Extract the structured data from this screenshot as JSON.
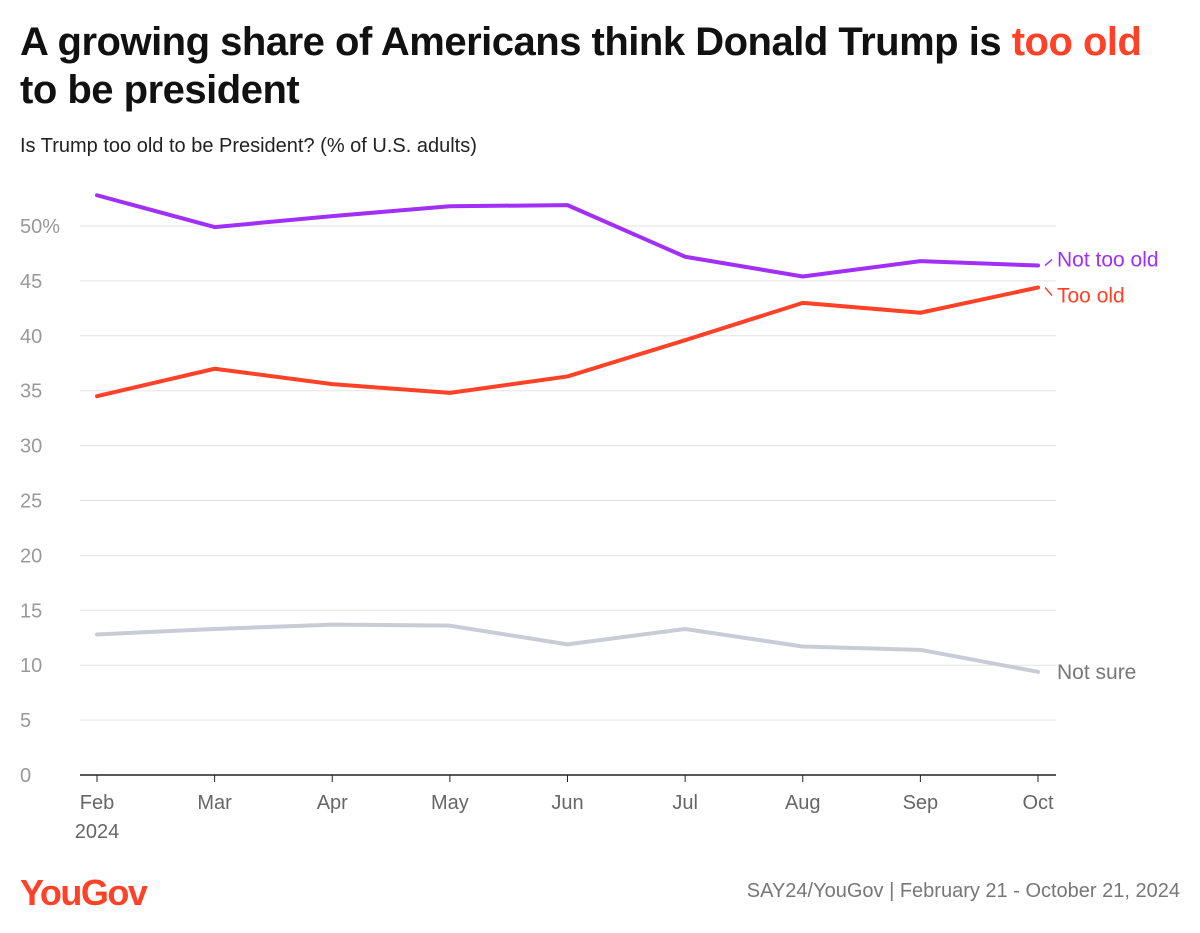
{
  "header": {
    "title_part1": "A growing share of Americans think Donald Trump is ",
    "title_highlight": "too old",
    "title_part2": " to be president",
    "subtitle": "Is Trump too old to be President? (% of U.S. adults)"
  },
  "footer": {
    "logo": "YouGov",
    "source": "SAY24/YouGov | February 21 - October 21, 2024"
  },
  "chart_data": {
    "type": "line",
    "categories": [
      "Feb",
      "Mar",
      "Apr",
      "May",
      "Jun",
      "Jul",
      "Aug",
      "Sep",
      "Oct"
    ],
    "category_sublabels": [
      "2024",
      "",
      "",
      "",
      "",
      "",
      "",
      "",
      ""
    ],
    "ylim": [
      0,
      53
    ],
    "yticks": [
      0,
      5,
      10,
      15,
      20,
      25,
      30,
      35,
      40,
      45,
      50
    ],
    "ytick_labels": [
      "0",
      "5",
      "10",
      "15",
      "20",
      "25",
      "30",
      "35",
      "40",
      "45",
      "50%"
    ],
    "grid": true,
    "series": [
      {
        "name": "Not too old",
        "color": "#a12ff7",
        "values": [
          52.8,
          49.9,
          50.9,
          51.8,
          51.9,
          47.2,
          45.4,
          46.8,
          46.4
        ]
      },
      {
        "name": "Too old",
        "color": "#ff4127",
        "values": [
          34.5,
          37.0,
          35.6,
          34.8,
          36.3,
          39.6,
          43.0,
          42.1,
          44.4
        ]
      },
      {
        "name": "Not sure",
        "color": "#c9cbd6",
        "label_color": "#777777",
        "values": [
          12.8,
          13.3,
          13.7,
          13.6,
          11.9,
          13.3,
          11.7,
          11.4,
          9.4
        ]
      }
    ]
  }
}
